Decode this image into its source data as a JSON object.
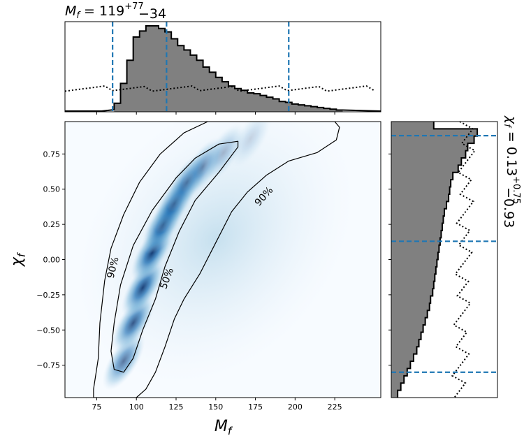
{
  "chart_data": [
    {
      "panel": "top-marginal",
      "type": "histogram",
      "title_base": "M",
      "title_sub": "f",
      "title_eq": " = 119",
      "title_sup": "+77",
      "title_subscript": "−34",
      "xlim": [
        55,
        254
      ],
      "bin_edges_start": 86,
      "bin_width": 4,
      "posterior_counts": [
        0.1,
        0.33,
        0.6,
        0.87,
        0.94,
        1.0,
        1.0,
        0.97,
        0.93,
        0.85,
        0.77,
        0.72,
        0.66,
        0.6,
        0.52,
        0.46,
        0.4,
        0.35,
        0.3,
        0.27,
        0.25,
        0.22,
        0.21,
        0.19,
        0.17,
        0.15,
        0.12,
        0.11,
        0.09,
        0.08,
        0.07,
        0.06,
        0.05,
        0.04,
        0.03,
        0.02
      ],
      "prior_level": 0.27,
      "quantile_lines": [
        85,
        119,
        196
      ],
      "quantile_color": "#1f77b4",
      "fill_color": "#808080"
    },
    {
      "panel": "right-marginal",
      "type": "histogram",
      "title_base": "χ",
      "title_sub": "f",
      "title_eq": " = 0.13",
      "title_sup": "+0.75",
      "title_subscript": "−0.93",
      "ylim": [
        -0.98,
        0.98
      ],
      "posterior_lengths": [
        0.4,
        0.81,
        0.78,
        0.72,
        0.7,
        0.66,
        0.63,
        0.58,
        0.56,
        0.55,
        0.54,
        0.52,
        0.5,
        0.49,
        0.48,
        0.47,
        0.46,
        0.45,
        0.44,
        0.43,
        0.42,
        0.41,
        0.4,
        0.39,
        0.37,
        0.36,
        0.34,
        0.32,
        0.3,
        0.28,
        0.26,
        0.24,
        0.21,
        0.18,
        0.15,
        0.12,
        0.09,
        0.06
      ],
      "quantile_lines": [
        0.88,
        0.13,
        -0.8
      ],
      "quantile_color": "#1f77b4",
      "fill_color": "#808080"
    },
    {
      "panel": "joint",
      "type": "heatmap",
      "xlabel_base": "M",
      "xlabel_sub": "f",
      "ylabel_base": "χ",
      "ylabel_sub": "f",
      "xlim": [
        55,
        254
      ],
      "ylim": [
        -0.98,
        0.98
      ],
      "x_ticks": [
        75,
        100,
        125,
        150,
        175,
        200,
        225
      ],
      "y_ticks": [
        0.75,
        0.5,
        0.25,
        0.0,
        -0.25,
        -0.5,
        -0.75
      ],
      "y_tick_labels": [
        "0.75",
        "0.50",
        "0.25",
        "0.00",
        "−0.25",
        "−0.50",
        "−0.75"
      ],
      "colormap": "Blues",
      "contour_levels": [
        "50%",
        "90%"
      ],
      "contour_label_50": "50%",
      "contour_label_90_left": "90%",
      "contour_label_90_right": "90%",
      "contour_50": [
        [
          86,
          -0.78
        ],
        [
          92,
          -0.8
        ],
        [
          98,
          -0.7
        ],
        [
          104,
          -0.5
        ],
        [
          112,
          -0.28
        ],
        [
          118,
          -0.05
        ],
        [
          127,
          0.2
        ],
        [
          137,
          0.42
        ],
        [
          152,
          0.62
        ],
        [
          164,
          0.8
        ],
        [
          164,
          0.84
        ],
        [
          152,
          0.82
        ],
        [
          137,
          0.72
        ],
        [
          125,
          0.58
        ],
        [
          110,
          0.35
        ],
        [
          98,
          0.1
        ],
        [
          90,
          -0.18
        ],
        [
          86,
          -0.45
        ],
        [
          84,
          -0.65
        ]
      ],
      "contour_90": [
        [
          73,
          -0.92
        ],
        [
          76,
          -0.7
        ],
        [
          77,
          -0.45
        ],
        [
          80,
          -0.15
        ],
        [
          84,
          0.08
        ],
        [
          92,
          0.32
        ],
        [
          102,
          0.55
        ],
        [
          115,
          0.75
        ],
        [
          130,
          0.9
        ],
        [
          145,
          0.98
        ],
        [
          225,
          0.98
        ],
        [
          228,
          0.94
        ],
        [
          226,
          0.85
        ],
        [
          214,
          0.76
        ],
        [
          196,
          0.7
        ],
        [
          182,
          0.6
        ],
        [
          170,
          0.48
        ],
        [
          160,
          0.34
        ],
        [
          150,
          0.12
        ],
        [
          140,
          -0.1
        ],
        [
          130,
          -0.28
        ],
        [
          124,
          -0.42
        ],
        [
          118,
          -0.62
        ],
        [
          112,
          -0.8
        ],
        [
          106,
          -0.92
        ],
        [
          100,
          -0.98
        ],
        [
          73,
          -0.98
        ]
      ]
    }
  ]
}
